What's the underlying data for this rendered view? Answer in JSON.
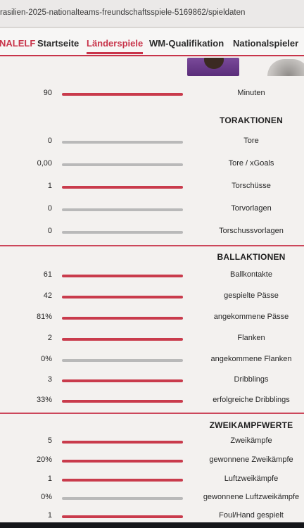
{
  "browser": {
    "url": "rasilien-2025-nationalteams-freundschaftsspiele-5169862/spieldaten"
  },
  "nav": {
    "brand": "NALELF",
    "items": [
      {
        "label": "Startseite"
      },
      {
        "label": "Länderspiele"
      },
      {
        "label": "WM-Qualifikation"
      },
      {
        "label": "Nationalspieler"
      }
    ]
  },
  "colors": {
    "accent": "#c8344a",
    "bar_active": "#c93b4c",
    "bar_inactive": "#b9b9b9"
  },
  "stats": {
    "minutes": {
      "value": "90",
      "label": "Minuten",
      "active": true
    },
    "toraktionen": {
      "title": "TORAKTIONEN",
      "rows": [
        {
          "value": "0",
          "label": "Tore",
          "active": false
        },
        {
          "value": "0,00",
          "label": "Tore / xGoals",
          "active": false
        },
        {
          "value": "1",
          "label": "Torschüsse",
          "active": true
        },
        {
          "value": "0",
          "label": "Torvorlagen",
          "active": false
        },
        {
          "value": "0",
          "label": "Torschussvorlagen",
          "active": false
        }
      ]
    },
    "ballaktionen": {
      "title": "BALLAKTIONEN",
      "rows": [
        {
          "value": "61",
          "label": "Ballkontakte",
          "active": true
        },
        {
          "value": "42",
          "label": "gespielte Pässe",
          "active": true
        },
        {
          "value": "81%",
          "label": "angekommene Pässe",
          "active": true
        },
        {
          "value": "2",
          "label": "Flanken",
          "active": true
        },
        {
          "value": "0%",
          "label": "angekommene Flanken",
          "active": false
        },
        {
          "value": "3",
          "label": "Dribblings",
          "active": true
        },
        {
          "value": "33%",
          "label": "erfolgreiche Dribblings",
          "active": true
        }
      ]
    },
    "zweikampfwerte": {
      "title": "ZWEIKAMPFWERTE",
      "rows": [
        {
          "value": "5",
          "label": "Zweikämpfe",
          "active": true
        },
        {
          "value": "20%",
          "label": "gewonnene Zweikämpfe",
          "active": true
        },
        {
          "value": "1",
          "label": "Luftzweikämpfe",
          "active": true
        },
        {
          "value": "0%",
          "label": "gewonnene Luftzweikämpfe",
          "active": false
        },
        {
          "value": "1",
          "label": "Foul/Hand gespielt",
          "active": true
        }
      ]
    }
  }
}
